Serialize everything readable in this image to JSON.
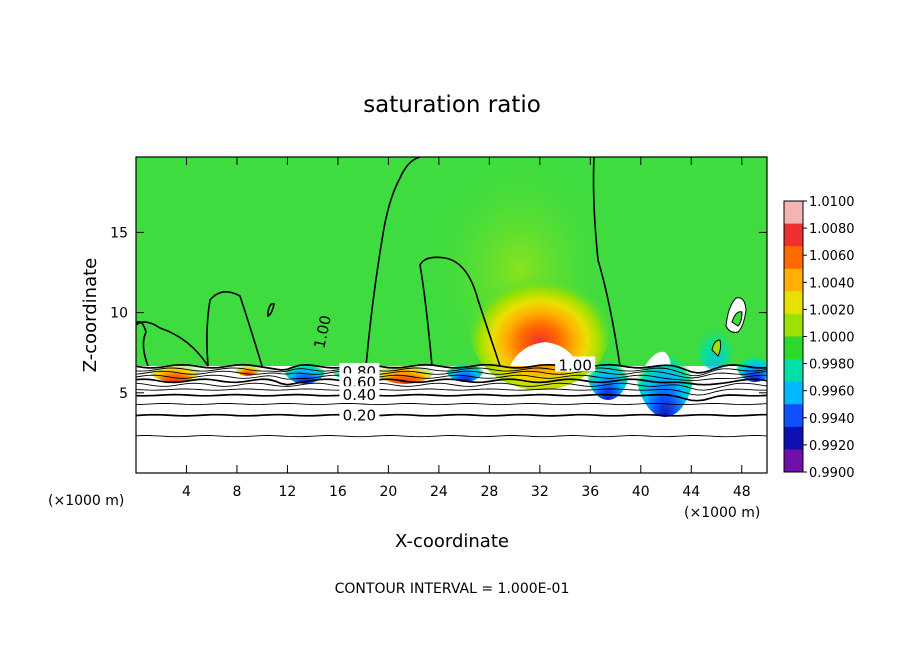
{
  "chart_data": {
    "type": "heatmap",
    "title": "saturation ratio",
    "xlabel": "X-coordinate",
    "ylabel": "Z-coordinate",
    "x_unit_left": "(×1000 m)",
    "x_unit_right": "(×1000 m)",
    "xlim": [
      0,
      50
    ],
    "ylim": [
      0,
      19.7
    ],
    "x_ticks": [
      4,
      8,
      12,
      16,
      20,
      24,
      28,
      32,
      36,
      40,
      44,
      48
    ],
    "y_ticks": [
      5,
      10,
      15
    ],
    "footer": "CONTOUR INTERVAL = 1.000E-01",
    "colorbar": {
      "labels": [
        "1.0100",
        "1.0080",
        "1.0060",
        "1.0040",
        "1.0020",
        "1.0000",
        "0.9980",
        "0.9960",
        "0.9940",
        "0.9920",
        "0.9900"
      ],
      "colors": [
        "#f4b4b4",
        "#f03030",
        "#ff6a00",
        "#ffb000",
        "#e8e000",
        "#9ee000",
        "#2ed82e",
        "#00e0a8",
        "#00b8ff",
        "#1050ff",
        "#1010b0",
        "#7010a8"
      ]
    },
    "background_color": "#3fdc3f",
    "surface_z": 6.8,
    "contour_labels": [
      {
        "text": "1.00",
        "x": 14.8,
        "z": 8.8,
        "rotate": -78
      },
      {
        "text": "1.00",
        "x": 34.8,
        "z": 6.7,
        "rotate": 0
      },
      {
        "text": "0.80",
        "x": 17.7,
        "z": 6.3,
        "rotate": 0
      },
      {
        "text": "0.60",
        "x": 17.7,
        "z": 5.65,
        "rotate": 0
      },
      {
        "text": "0.40",
        "x": 17.7,
        "z": 4.85,
        "rotate": 0
      },
      {
        "text": "0.20",
        "x": 17.7,
        "z": 3.6,
        "rotate": 0
      }
    ],
    "low_level_contours_z": [
      6.65,
      6.45,
      6.25,
      6.0,
      5.75,
      5.5,
      5.2,
      4.85,
      4.3,
      3.6,
      2.3
    ]
  }
}
